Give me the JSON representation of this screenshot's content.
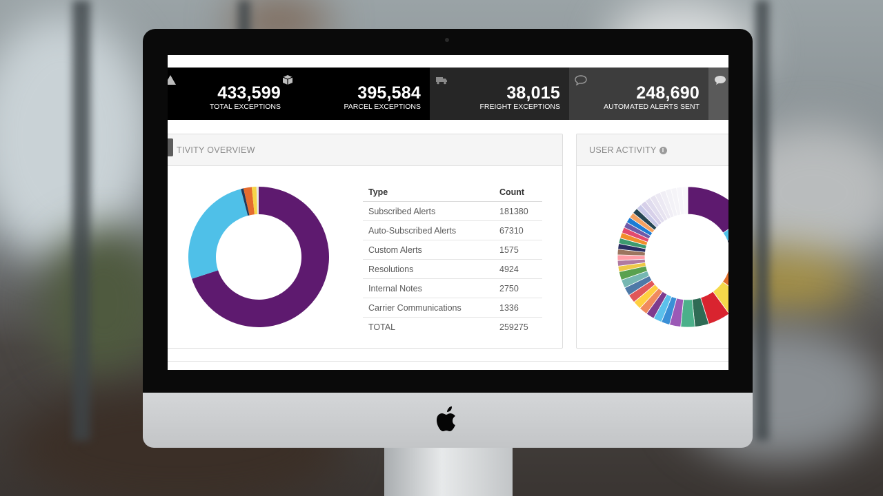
{
  "stats": [
    {
      "value": "433,599",
      "label": "TOTAL EXCEPTIONS",
      "icon": "alert-icon"
    },
    {
      "value": "395,584",
      "label": "PARCEL EXCEPTIONS",
      "icon": "box-icon"
    },
    {
      "value": "38,015",
      "label": "FREIGHT EXCEPTIONS",
      "icon": "truck-icon"
    },
    {
      "value": "248,690",
      "label": "AUTOMATED ALERTS SENT",
      "icon": "chat-bubble-icon"
    }
  ],
  "activity_panel": {
    "title": "TIVITY OVERVIEW",
    "table": {
      "headers": [
        "Type",
        "Count"
      ],
      "rows": [
        [
          "Subscribed Alerts",
          "181380"
        ],
        [
          "Auto-Subscribed Alerts",
          "67310"
        ],
        [
          "Custom Alerts",
          "1575"
        ],
        [
          "Resolutions",
          "4924"
        ],
        [
          "Internal Notes",
          "2750"
        ],
        [
          "Carrier Communications",
          "1336"
        ],
        [
          "TOTAL",
          "259275"
        ]
      ]
    }
  },
  "user_panel": {
    "title": "USER ACTIVITY",
    "info_glyph": "i"
  },
  "chart_data": [
    {
      "type": "pie",
      "categories": [
        "Subscribed Alerts",
        "Auto-Subscribed Alerts",
        "Custom Alerts",
        "Resolutions",
        "Internal Notes",
        "Carrier Communications"
      ],
      "values": [
        181380,
        67310,
        1575,
        4924,
        2750,
        1336
      ],
      "colors": [
        "#5e1a6f",
        "#4fc0e8",
        "#1f3a5c",
        "#e46c2e",
        "#f7d548",
        "#e6e6e6"
      ]
    },
    {
      "type": "pie",
      "values": [
        24,
        5,
        16,
        9,
        8,
        8,
        5,
        5,
        4,
        3,
        3,
        3,
        3,
        3,
        3,
        3,
        3,
        3,
        2,
        2,
        2,
        2,
        2,
        2,
        2,
        2,
        2,
        2,
        2,
        2,
        2,
        2,
        2,
        2,
        2,
        2,
        2,
        2,
        2,
        2
      ],
      "colors": [
        "#5e1a6f",
        "#4fc0e8",
        "#0f2a4a",
        "#e2702b",
        "#f6d94a",
        "#d9242f",
        "#2f6b55",
        "#4bb08a",
        "#9b59b6",
        "#3a8fd6",
        "#5bc0eb",
        "#7e3b8e",
        "#f08a5d",
        "#ffcf40",
        "#e15759",
        "#4e79a7",
        "#76b7b2",
        "#59a14f",
        "#edc948",
        "#b07aa1",
        "#ff9da7",
        "#9c755f",
        "#2b2d62",
        "#3d9970",
        "#f28e2b",
        "#e34a6f",
        "#6f5aa8",
        "#1c7cd5",
        "#f4a261",
        "#264653",
        "#c9c9e8",
        "#d7d0e9",
        "#e0dcee",
        "#e7e3f0",
        "#ece9f3",
        "#f0eef5",
        "#f3f2f7",
        "#f5f4f8",
        "#f7f6fa",
        "#f9f8fb"
      ]
    }
  ]
}
